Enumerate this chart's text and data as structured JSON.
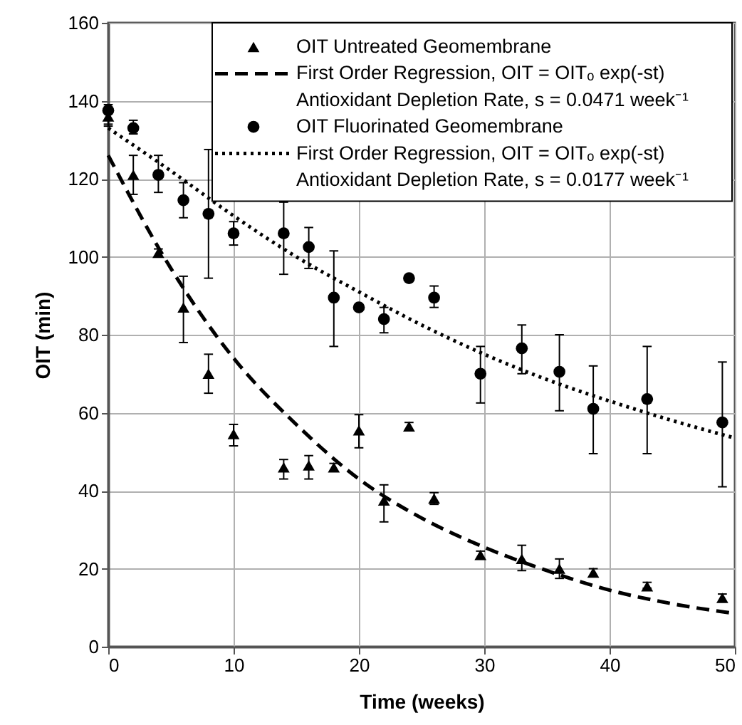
{
  "chart_data": {
    "type": "scatter",
    "xlabel": "Time (weeks)",
    "ylabel": "OIT (min)",
    "xlim": [
      0,
      50
    ],
    "xticks": [
      0,
      10,
      20,
      30,
      40,
      50
    ],
    "ylim": [
      0,
      160
    ],
    "yticks": [
      0,
      20,
      40,
      60,
      80,
      100,
      120,
      140,
      160
    ],
    "grid": true,
    "legend": "top right",
    "series": [
      {
        "name": "OIT Untreated Geomembrane",
        "color": "#000000",
        "marker": "triangle",
        "x": [
          0,
          2,
          4,
          6,
          8,
          10,
          14,
          16,
          18,
          20,
          22,
          24,
          26,
          29.7,
          33,
          36,
          38.7,
          43,
          49
        ],
        "values": [
          136,
          121,
          101,
          87,
          70,
          54.5,
          46,
          46.5,
          46,
          55.5,
          37.5,
          56.5,
          38,
          23.5,
          22.5,
          20,
          19,
          15.5,
          12.5
        ],
        "errors": [
          [
            134,
            138
          ],
          [
            116,
            126
          ],
          [
            100,
            102
          ],
          [
            78,
            95
          ],
          [
            65,
            75
          ],
          [
            51.5,
            57
          ],
          [
            43,
            48
          ],
          [
            43,
            49
          ],
          [
            45,
            47
          ],
          [
            51,
            59.5
          ],
          [
            32,
            41.5
          ],
          [
            55.5,
            57.5
          ],
          [
            36.5,
            39.5
          ],
          [
            22.5,
            24.5
          ],
          [
            19.5,
            26
          ],
          [
            17.5,
            22.5
          ],
          [
            18,
            20
          ],
          [
            15,
            16.5
          ],
          [
            11.5,
            13.5
          ]
        ]
      },
      {
        "type": "line",
        "name": "First Order Regression, OIT = OITₒ exp(-st)\nAntioxidant Depletion Rate, s = 0.0471 week⁻¹",
        "color": "#000000",
        "line_style": "dashed",
        "x": [
          0,
          5,
          10,
          15,
          20,
          25,
          30,
          35,
          40,
          45,
          50
        ],
        "values": [
          126,
          97,
          74,
          57,
          43,
          33,
          25.5,
          19.5,
          14.5,
          11,
          8.5
        ]
      },
      {
        "name": "OIT Fluorinated Geomembrane",
        "color": "#000000",
        "marker": "circle",
        "x": [
          0,
          2,
          4,
          6,
          8,
          10,
          14,
          16,
          18,
          20,
          22,
          24,
          26,
          29.7,
          33,
          36,
          38.7,
          43,
          49
        ],
        "values": [
          137.5,
          133,
          121,
          114.5,
          111,
          106,
          106,
          102.5,
          89.5,
          87,
          84,
          94.5,
          89.5,
          70,
          76.5,
          70.5,
          61,
          63.5,
          57.5
        ],
        "errors": [
          [
            133.5,
            139
          ],
          [
            131.5,
            135
          ],
          [
            116.5,
            126
          ],
          [
            110,
            119
          ],
          [
            94.5,
            127.5
          ],
          [
            103,
            109
          ],
          [
            95.5,
            114
          ],
          [
            97,
            107.5
          ],
          [
            77,
            101.5
          ],
          null,
          [
            80.5,
            87
          ],
          null,
          [
            87,
            92.5
          ],
          [
            62.5,
            77
          ],
          [
            70,
            82.5
          ],
          [
            60.5,
            80
          ],
          [
            49.5,
            72
          ],
          [
            49.5,
            77
          ],
          [
            41,
            73
          ]
        ]
      },
      {
        "type": "line",
        "name": "First Order Regression, OIT = OITₒ exp(-st)\nAntioxidant Depletion Rate, s = 0.0177 week⁻¹",
        "color": "#000000",
        "line_style": "dotted",
        "x": [
          0,
          5,
          10,
          15,
          20,
          25,
          30,
          35,
          40,
          45,
          50
        ],
        "values": [
          133,
          122,
          110.5,
          100,
          91,
          82.5,
          75,
          68.5,
          63,
          58,
          53.5
        ]
      }
    ]
  }
}
